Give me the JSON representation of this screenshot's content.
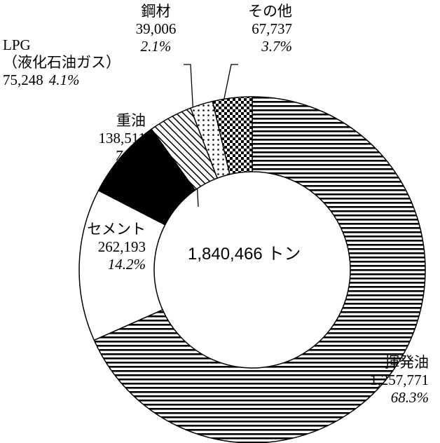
{
  "chart_data": {
    "type": "donut",
    "center_label": "1,840,466 トン",
    "categories": [
      "揮発油",
      "セメント",
      "重油",
      "LPG\n（液化石油ガス）",
      "鋼材",
      "その他"
    ],
    "values": [
      1257771,
      262193,
      138511,
      75248,
      39006,
      67737
    ],
    "value_labels": [
      "1,257,771",
      "262,193",
      "138,511",
      "75,248",
      "39,006",
      "67,737"
    ],
    "percent_labels": [
      "68.3%",
      "14.2%",
      "7.5%",
      "4.1%",
      "2.1%",
      "3.7%"
    ],
    "fills": [
      "hlines",
      "white",
      "black",
      "diag",
      "dots",
      "checker"
    ]
  }
}
